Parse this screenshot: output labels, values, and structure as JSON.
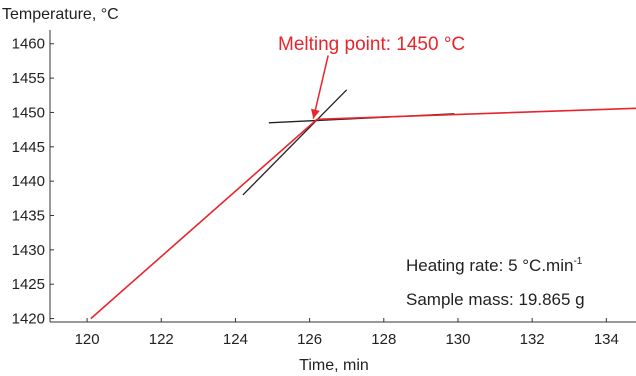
{
  "chart_data": {
    "type": "line",
    "xlabel": "Time, min",
    "ylabel": "Temperature, °C",
    "xlim": [
      119,
      134.8
    ],
    "ylim": [
      1419.5,
      1462
    ],
    "x_ticks": [
      120,
      122,
      124,
      126,
      128,
      130,
      132,
      134
    ],
    "y_ticks": [
      1420,
      1425,
      1430,
      1435,
      1440,
      1445,
      1450,
      1455,
      1460
    ],
    "grid": false,
    "series": [
      {
        "color": "#e8252c",
        "points": [
          [
            120.1,
            1420
          ],
          [
            126.2,
            1449
          ],
          [
            134.8,
            1450.6
          ]
        ]
      }
    ],
    "tangents": [
      {
        "color": "#222222",
        "points": [
          [
            124.2,
            1438
          ],
          [
            127.0,
            1453.3
          ]
        ]
      },
      {
        "color": "#222222",
        "points": [
          [
            124.9,
            1448.5
          ],
          [
            129.9,
            1449.8
          ]
        ]
      }
    ],
    "annotation": {
      "text": "Melting point: 1450 °C",
      "color": "#e8252c",
      "arrow_from": [
        126.5,
        1458.3
      ],
      "arrow_to": [
        126.1,
        1449.1
      ]
    },
    "info": {
      "heating_rate_label": "Heating rate:",
      "heating_rate_value": "5 °C.min",
      "heating_rate_sup": "-1",
      "sample_mass_label": "Sample mass:",
      "sample_mass_value": "19.865 g"
    }
  }
}
